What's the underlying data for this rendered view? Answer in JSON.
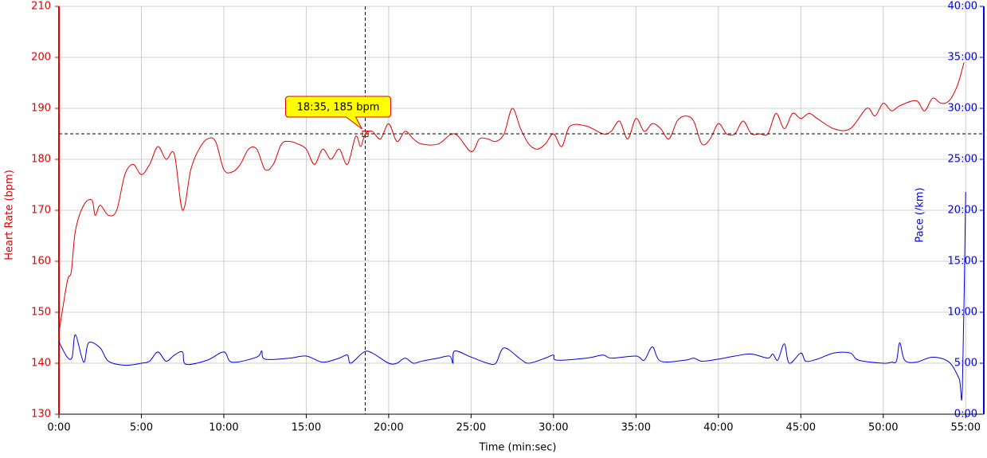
{
  "chart_data": {
    "type": "line",
    "xlabel": "Time (min:sec)",
    "ylabel": "Heart Rate (bpm)",
    "y2label": "Pace (/km)",
    "xlim": [
      0,
      56.1
    ],
    "xticks": [
      {
        "value": 0,
        "label": "0:00"
      },
      {
        "value": 5,
        "label": "5:00"
      },
      {
        "value": 10,
        "label": "10:00"
      },
      {
        "value": 15,
        "label": "15:00"
      },
      {
        "value": 20,
        "label": "20:00"
      },
      {
        "value": 25,
        "label": "25:00"
      },
      {
        "value": 30,
        "label": "30:00"
      },
      {
        "value": 35,
        "label": "35:00"
      },
      {
        "value": 40,
        "label": "40:00"
      },
      {
        "value": 45,
        "label": "45:00"
      },
      {
        "value": 50,
        "label": "50:00"
      },
      {
        "value": 55,
        "label": "55:00"
      }
    ],
    "ylim": [
      130,
      210
    ],
    "yticks": [
      130,
      140,
      150,
      160,
      170,
      180,
      190,
      200,
      210
    ],
    "y2lim": [
      0,
      40
    ],
    "y2ticks": [
      {
        "value": 0,
        "label": "0:00"
      },
      {
        "value": 5,
        "label": "5:00"
      },
      {
        "value": 10,
        "label": "10:00"
      },
      {
        "value": 15,
        "label": "15:00"
      },
      {
        "value": 20,
        "label": "20:00"
      },
      {
        "value": 25,
        "label": "25:00"
      },
      {
        "value": 30,
        "label": "30:00"
      },
      {
        "value": 35,
        "label": "35:00"
      },
      {
        "value": 40,
        "label": "40:00"
      }
    ],
    "grid": true,
    "ycolor": "#e00000",
    "y2color": "#0000e0",
    "series": [
      {
        "color": "#e00000",
        "axis": "y",
        "x": [
          0,
          0.5,
          0.75,
          1,
          1.5,
          2,
          2.2,
          2.5,
          3,
          3.5,
          4,
          4.5,
          5,
          5.5,
          6,
          6.5,
          7,
          7.5,
          8,
          8.5,
          9,
          9.5,
          10,
          10.5,
          11,
          11.5,
          12,
          12.5,
          13,
          13.5,
          14,
          14.5,
          15,
          15.5,
          16,
          16.5,
          17,
          17.5,
          18,
          18.3,
          18.58,
          19,
          19.5,
          20,
          20.5,
          21,
          21.5,
          22,
          23,
          24,
          25,
          25.5,
          26,
          26.5,
          27,
          27.5,
          28,
          28.5,
          29,
          29.5,
          30,
          30.5,
          31,
          32,
          33,
          33.5,
          34,
          34.5,
          35,
          35.5,
          36,
          36.5,
          37,
          37.5,
          38,
          38.5,
          39,
          39.5,
          40,
          40.5,
          41,
          41.5,
          42,
          42.5,
          43,
          43.5,
          44,
          44.5,
          45,
          45.5,
          46,
          47,
          48,
          49,
          49.5,
          50,
          50.5,
          51,
          52,
          52.5,
          53,
          53.5,
          54,
          54.5,
          54.9
        ],
        "values": [
          146,
          156,
          158,
          166,
          171,
          172,
          169,
          171,
          169,
          170,
          177,
          179,
          177,
          179,
          182.5,
          180,
          181,
          170,
          178,
          182,
          184,
          183.5,
          178,
          177.5,
          179,
          182,
          182,
          178,
          179,
          183,
          183.5,
          183,
          182,
          179,
          182,
          180,
          182,
          179,
          184.5,
          182.5,
          185,
          185.5,
          184,
          187,
          183.5,
          185.5,
          184,
          183,
          183,
          185,
          181.5,
          184,
          184,
          183.5,
          185,
          190,
          186,
          183,
          182,
          183,
          185,
          182.5,
          186.5,
          186.5,
          185,
          185.5,
          187.5,
          184,
          188,
          185.5,
          187,
          186,
          184,
          187.5,
          188.5,
          187.5,
          183,
          184,
          187,
          185,
          185,
          187.5,
          185,
          185,
          185,
          189,
          186,
          189,
          188,
          189,
          188,
          186,
          186,
          190,
          188.5,
          191,
          189.5,
          190.5,
          191.5,
          189.5,
          192,
          191,
          191.5,
          194.5,
          199
        ]
      },
      {
        "color": "#0000e0",
        "axis": "y2",
        "x": [
          0,
          0.5,
          0.8,
          1,
          1.5,
          1.8,
          2.5,
          3,
          4,
          5,
          5.5,
          6,
          6.5,
          7,
          7.5,
          7.7,
          9,
          10,
          10.5,
          12,
          12.3,
          12.5,
          14,
          15,
          16,
          17,
          17.5,
          17.7,
          18.5,
          19,
          20,
          20.5,
          21,
          21.5,
          22,
          23,
          23.7,
          23.9,
          24,
          25,
          26,
          26.5,
          27,
          28,
          28.5,
          29.5,
          30,
          30.2,
          32,
          33,
          33.5,
          35,
          35.5,
          36,
          36.5,
          38,
          38.5,
          39,
          40,
          41,
          42,
          43,
          43.3,
          43.6,
          44,
          44.3,
          45,
          45.3,
          46,
          47,
          48,
          48.5,
          50,
          50.5,
          50.8,
          51,
          51.3,
          52,
          53,
          54,
          54.6,
          54.8,
          55
        ],
        "values": [
          7.1,
          5.6,
          5.6,
          7.8,
          5.1,
          7.0,
          6.5,
          5.2,
          4.8,
          5.0,
          5.2,
          6.1,
          5.2,
          5.8,
          6.1,
          4.9,
          5.3,
          6.1,
          5.1,
          5.6,
          6.2,
          5.4,
          5.5,
          5.7,
          5.1,
          5.5,
          5.8,
          5.0,
          6.1,
          6.0,
          5.0,
          5.0,
          5.5,
          5.0,
          5.2,
          5.5,
          5.7,
          5.0,
          6.2,
          5.6,
          5.0,
          5.0,
          6.5,
          5.4,
          5.0,
          5.5,
          5.8,
          5.3,
          5.5,
          5.8,
          5.5,
          5.7,
          5.3,
          6.6,
          5.2,
          5.3,
          5.5,
          5.2,
          5.4,
          5.7,
          5.9,
          5.5,
          5.9,
          5.3,
          6.9,
          5.0,
          6.0,
          5.2,
          5.4,
          6.0,
          6.0,
          5.3,
          5.0,
          5.1,
          5.2,
          7.0,
          5.3,
          5.1,
          5.6,
          5.1,
          3.5,
          2.6,
          21.8
        ]
      }
    ],
    "annotation": {
      "text": "18:35, 185 bpm",
      "x": 18.58,
      "y": 185
    }
  }
}
